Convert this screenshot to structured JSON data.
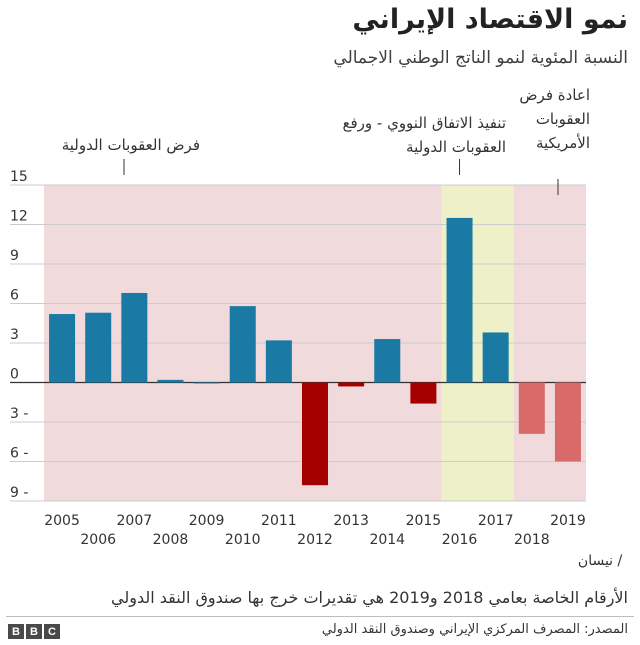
{
  "header": {
    "title": "نمو الاقتصاد الإيراني",
    "subtitle": "النسبة المئوية لنمو الناتج الوطني الاجمالي"
  },
  "footer": {
    "note": "الأرقام الخاصة بعامي 2018 و2019 هي تقديرات خرج بها صندوق النقد الدولي",
    "source": "المصدر: المصرف المركزي الإيراني وصندوق النقد الدولي",
    "logo_letters": [
      "B",
      "B",
      "C"
    ]
  },
  "chart_data": {
    "type": "bar",
    "categories": [
      "2005",
      "2006",
      "2007",
      "2008",
      "2009",
      "2010",
      "2011",
      "2012",
      "2013",
      "2014",
      "2015",
      "2016",
      "2017",
      "2018",
      "2019"
    ],
    "values": [
      5.2,
      5.3,
      6.8,
      0.2,
      0.0,
      5.8,
      3.2,
      -7.8,
      -0.3,
      3.3,
      -1.6,
      12.5,
      3.8,
      -3.9,
      -6.0
    ],
    "ylim": [
      -9,
      15
    ],
    "yticks": [
      15,
      12,
      9,
      6,
      3,
      0,
      -3,
      -6,
      -9
    ],
    "ytick_labels": [
      "15",
      "12",
      "9",
      "6",
      "3",
      "0",
      "3 -",
      "6 -",
      "9 -"
    ],
    "extra_x_label": "/ نيسان",
    "grid": true,
    "colors": {
      "positive": "#1a7aa3",
      "negative": "#a50000",
      "estimate_negative": "#d96a6a",
      "sanctions_band": "#f0dadc",
      "deal_band": "#eef1c8"
    },
    "bands": [
      {
        "from": "2005",
        "to": "2015",
        "type": "sanctions"
      },
      {
        "from": "2016",
        "to": "2017",
        "type": "deal"
      },
      {
        "from": "2018",
        "to": "2019",
        "type": "sanctions"
      }
    ],
    "annotations": [
      {
        "lines": [
          "فرض العقوبات الدولية"
        ],
        "at": "2007"
      },
      {
        "lines": [
          "تنفيذ الاتفاق النووي - ورفع",
          "العقوبات الدولية"
        ],
        "at": "2016"
      },
      {
        "lines": [
          "اعادة فرض",
          "العقوبات",
          "الأمريكية"
        ],
        "at": "2018"
      }
    ]
  }
}
